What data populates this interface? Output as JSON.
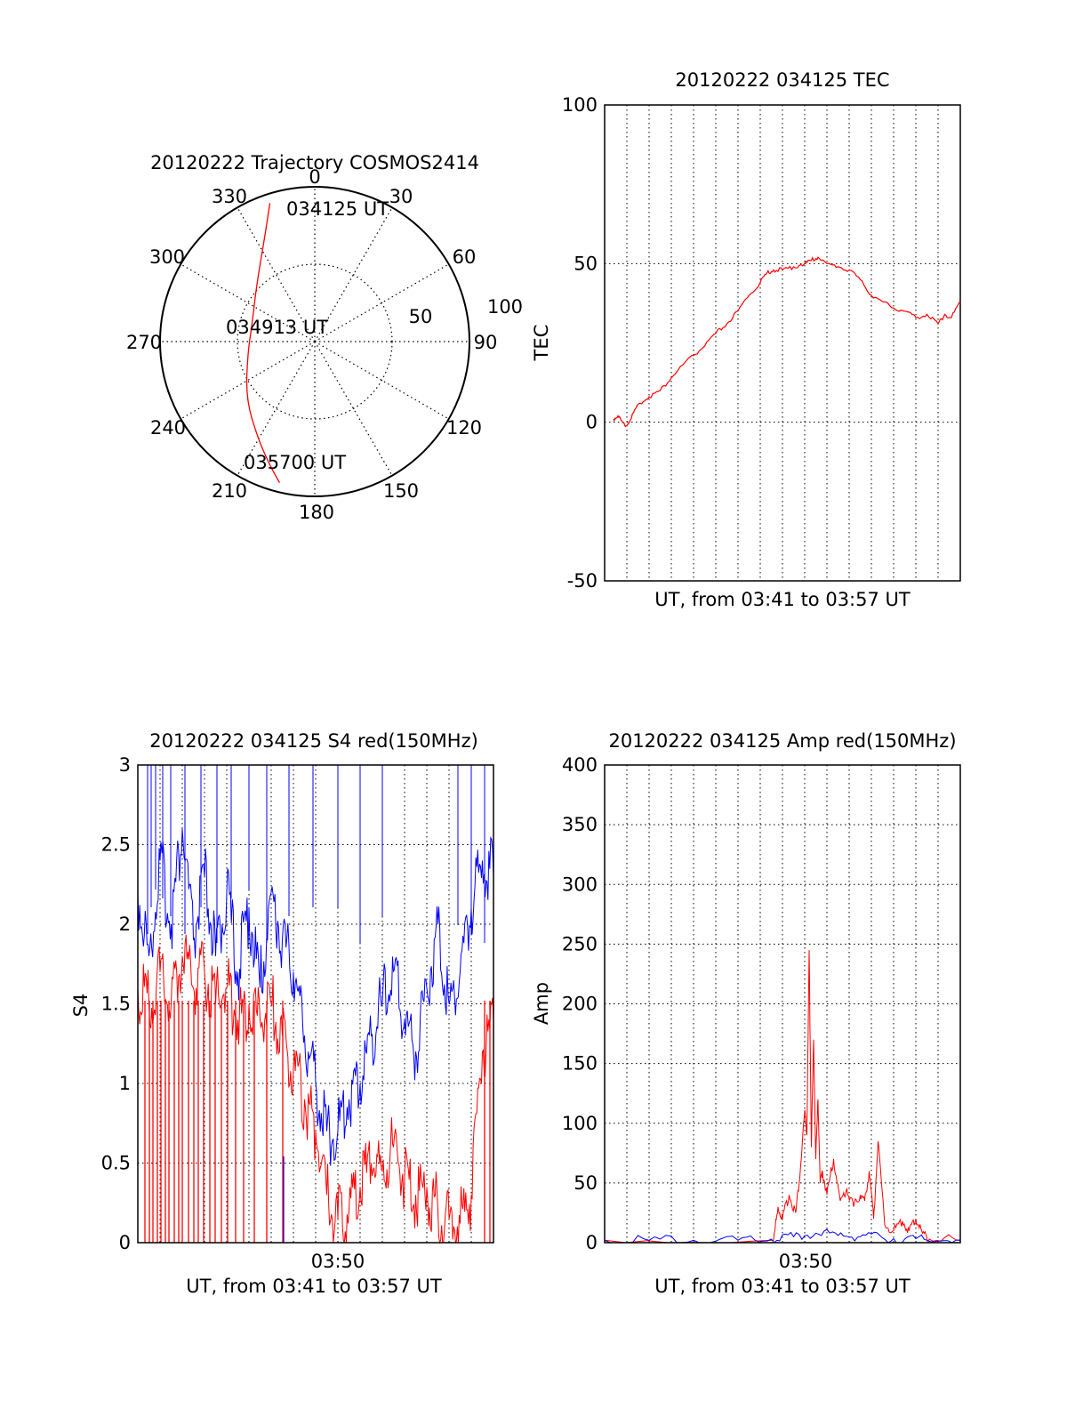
{
  "chart_data": [
    {
      "id": "polar",
      "type": "polar-trajectory",
      "title": "20120222 Trajectory COSMOS2414",
      "azimuth_labels": [
        "0",
        "30",
        "60",
        "90",
        "120",
        "150",
        "180",
        "210",
        "240",
        "270",
        "300",
        "330"
      ],
      "radial_labels": [
        "50",
        "100"
      ],
      "rlim": [
        0,
        100
      ],
      "grid": true,
      "annotations": [
        {
          "text": "034125 UT",
          "az": 18,
          "r": 76
        },
        {
          "text": "034913 UT",
          "az": 0,
          "r": 2
        },
        {
          "text": "035700 UT",
          "az": 205,
          "r": 98
        }
      ],
      "trajectory": {
        "color": "#ff0000",
        "points": [
          [
            18,
            94
          ],
          [
            25,
            76
          ],
          [
            45,
            53
          ],
          [
            75,
            42
          ],
          [
            100,
            44
          ],
          [
            130,
            58
          ],
          [
            150,
            73
          ],
          [
            160,
            85
          ],
          [
            166,
            94
          ]
        ],
        "note_units": "[azimuth deg measured from 0 toward 270 side mirrored, zenith distance]"
      }
    },
    {
      "id": "tec",
      "type": "line",
      "title": "20120222 034125 TEC",
      "ylabel": "TEC",
      "xlabel": "UT, from 03:41 to 03:57 UT",
      "ylim": [
        -50,
        100
      ],
      "yticks": [
        "-50",
        "0",
        "50",
        "100"
      ],
      "xlim": [
        0,
        16
      ],
      "grid": true,
      "series": [
        {
          "color": "#ff0000",
          "x": [
            0.4,
            0.6,
            0.8,
            1.0,
            1.3,
            1.6,
            2.0,
            2.5,
            3.0,
            3.5,
            4.0,
            4.5,
            5.0,
            5.5,
            6.0,
            6.5,
            7.0,
            7.3,
            7.6,
            8.0,
            8.5,
            9.0,
            9.3,
            9.6,
            10.0,
            10.5,
            11.0,
            11.5,
            12.0,
            12.5,
            13.0,
            13.5,
            14.0,
            14.5,
            15.0,
            15.3,
            15.6,
            16.0
          ],
          "y": [
            1,
            2,
            0,
            -1,
            3,
            6,
            8,
            10,
            14,
            18,
            21,
            24,
            28,
            31,
            35,
            40,
            44,
            47,
            48,
            48,
            49,
            50,
            51,
            52,
            50,
            49,
            48,
            45,
            40,
            38,
            36,
            35,
            33,
            34,
            31,
            34,
            33,
            38
          ]
        }
      ]
    },
    {
      "id": "s4",
      "type": "line",
      "title": "20120222 034125 S4 red(150MHz)",
      "ylabel": "S4",
      "xlabel": "UT, from 03:41 to 03:57 UT",
      "xtick_label": "03:50",
      "ylim": [
        0,
        3
      ],
      "yticks": [
        "0",
        "0.5",
        "1",
        "1.5",
        "2",
        "2.5",
        "3"
      ],
      "xlim": [
        0,
        16
      ],
      "grid": true,
      "series": [
        {
          "color": "#0000ff",
          "x": [
            0,
            0.5,
            1,
            1.5,
            2,
            2.5,
            3,
            3.5,
            4,
            4.5,
            5,
            5.5,
            6,
            6.5,
            7,
            7.5,
            8,
            8.5,
            9,
            9.5,
            10,
            10.5,
            11,
            11.5,
            12,
            12.5,
            13,
            13.5,
            14,
            14.5,
            15,
            15.5,
            16
          ],
          "y": [
            2.2,
            1.8,
            2.4,
            2.0,
            2.6,
            1.9,
            2.3,
            1.8,
            2.2,
            1.7,
            2.1,
            1.6,
            2.2,
            1.9,
            1.7,
            1.3,
            1.0,
            0.7,
            0.7,
            0.9,
            1.0,
            1.3,
            1.5,
            1.7,
            1.4,
            1.2,
            1.6,
            2.0,
            1.5,
            1.7,
            2.1,
            2.4,
            2.3
          ]
        },
        {
          "color": "#ff0000",
          "x": [
            0,
            0.5,
            1,
            1.5,
            2,
            2.5,
            3,
            3.5,
            4,
            4.5,
            5,
            5.5,
            6,
            6.5,
            7,
            7.5,
            8,
            8.5,
            9,
            9.5,
            10,
            10.5,
            11,
            11.5,
            12,
            12.5,
            13,
            13.5,
            14,
            14.5,
            15,
            15.5,
            16
          ],
          "y": [
            1.6,
            1.5,
            1.7,
            1.5,
            1.8,
            1.6,
            1.7,
            1.5,
            1.6,
            1.4,
            1.5,
            1.4,
            1.5,
            1.3,
            1.1,
            0.9,
            0.7,
            0.3,
            0.15,
            0.2,
            0.35,
            0.5,
            0.45,
            0.6,
            0.4,
            0.3,
            0.35,
            0.2,
            0.15,
            0.12,
            0.3,
            1.2,
            1.4
          ]
        }
      ]
    },
    {
      "id": "amp",
      "type": "line",
      "title": "20120222 034125 Amp red(150MHz)",
      "ylabel": "Amp",
      "xlabel": "UT, from 03:41 to 03:57 UT",
      "xtick_label": "03:50",
      "ylim": [
        0,
        400
      ],
      "yticks": [
        "0",
        "50",
        "100",
        "150",
        "200",
        "250",
        "300",
        "350",
        "400"
      ],
      "xlim": [
        0,
        16
      ],
      "grid": true,
      "series": [
        {
          "color": "#ff0000",
          "x": [
            0,
            7.6,
            7.8,
            8.0,
            8.3,
            8.6,
            8.8,
            9.0,
            9.1,
            9.2,
            9.3,
            9.4,
            9.5,
            9.6,
            9.7,
            9.8,
            10.0,
            10.3,
            10.6,
            10.9,
            11.2,
            11.5,
            11.7,
            11.9,
            12.1,
            12.3,
            12.6,
            13.0,
            13.4,
            13.7,
            14.0,
            14.3,
            14.6,
            16.0
          ],
          "y": [
            2,
            2,
            30,
            20,
            40,
            25,
            60,
            110,
            90,
            245,
            80,
            170,
            70,
            120,
            50,
            60,
            40,
            70,
            35,
            45,
            30,
            40,
            35,
            60,
            20,
            85,
            15,
            10,
            18,
            10,
            20,
            8,
            3,
            2
          ]
        },
        {
          "color": "#0000ff",
          "x": [
            0,
            2,
            4,
            6,
            7.5,
            8.5,
            9.5,
            10.5,
            11.5,
            12.5,
            13.5,
            14.5,
            16
          ],
          "y": [
            2,
            2,
            2,
            2,
            3,
            5,
            8,
            6,
            5,
            4,
            3,
            2,
            2
          ]
        }
      ]
    }
  ]
}
